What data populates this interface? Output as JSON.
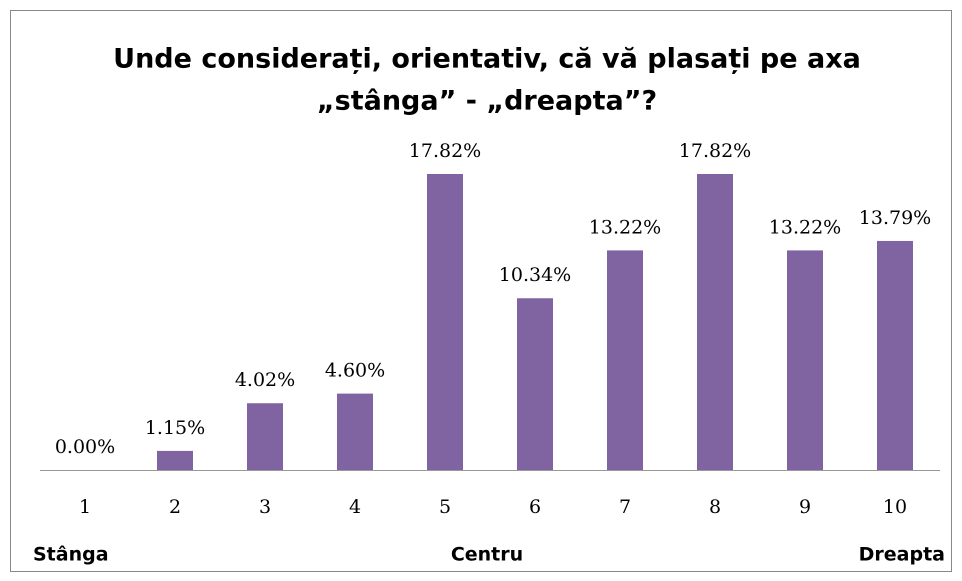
{
  "chart_data": {
    "type": "bar",
    "title": [
      "Unde considerați, orientativ, că vă plasați pe axa",
      "„stânga” - „dreapta”?"
    ],
    "categories": [
      "1",
      "2",
      "3",
      "4",
      "5",
      "6",
      "7",
      "8",
      "9",
      "10"
    ],
    "values": [
      0,
      1.15,
      4.02,
      4.6,
      17.82,
      10.34,
      13.22,
      17.82,
      13.22,
      13.79
    ],
    "value_labels": [
      "0.00%",
      "1.15%",
      "4.02%",
      "4.60%",
      "17.82%",
      "10.34%",
      "13.22%",
      "17.82%",
      "13.22%",
      "13.79%"
    ],
    "color": "#8064a2",
    "annotations": [
      "Stânga",
      "Centru",
      "Dreapta"
    ]
  }
}
